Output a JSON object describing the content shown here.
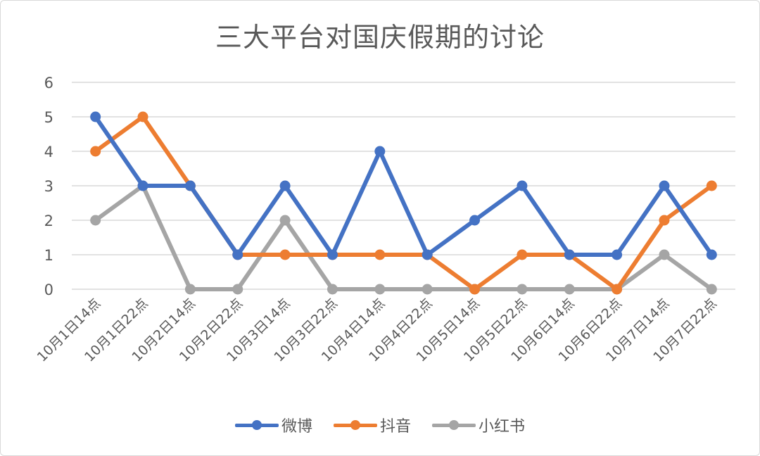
{
  "chart_data": {
    "type": "line",
    "title": "三大平台对国庆假期的讨论",
    "xlabel": "",
    "ylabel": "",
    "ylim": [
      0,
      6
    ],
    "yticks": [
      0,
      1,
      2,
      3,
      4,
      5,
      6
    ],
    "grid": true,
    "legend_position": "bottom",
    "categories": [
      "10月1日14点",
      "10月1日22点",
      "10月2日14点",
      "10月2日22点",
      "10月3日14点",
      "10月3日22点",
      "10月4日14点",
      "10月4日22点",
      "10月5日14点",
      "10月5日22点",
      "10月6日14点",
      "10月6日22点",
      "10月7日14点",
      "10月7日22点"
    ],
    "series": [
      {
        "name": "微博",
        "color": "#4472C4",
        "values": [
          5,
          3,
          3,
          1,
          3,
          1,
          4,
          1,
          2,
          3,
          1,
          1,
          3,
          1
        ]
      },
      {
        "name": "抖音",
        "color": "#ED7D31",
        "values": [
          4,
          5,
          3,
          1,
          1,
          1,
          1,
          1,
          0,
          1,
          1,
          0,
          2,
          3
        ]
      },
      {
        "name": "小红书",
        "color": "#A5A5A5",
        "values": [
          2,
          3,
          0,
          0,
          2,
          0,
          0,
          0,
          0,
          0,
          0,
          0,
          1,
          0
        ]
      }
    ]
  },
  "legend": {
    "items": [
      {
        "label": "微博",
        "color": "#4472C4"
      },
      {
        "label": "抖音",
        "color": "#ED7D31"
      },
      {
        "label": "小红书",
        "color": "#A5A5A5"
      }
    ]
  }
}
